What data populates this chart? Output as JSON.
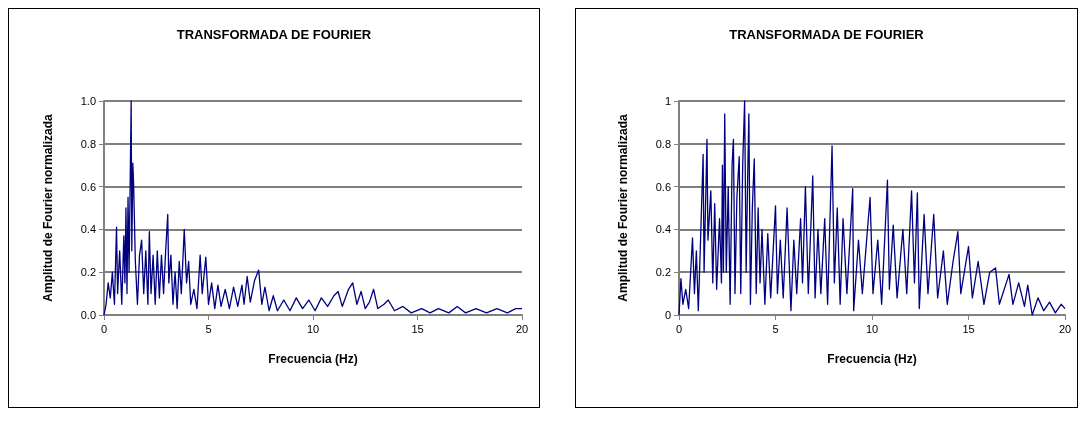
{
  "chart_data": [
    {
      "type": "line",
      "title": "TRANSFORMADA DE FOURIER",
      "xlabel": "Frecuencia (Hz)",
      "ylabel": "Amplitud de Fourier normalizada",
      "grid": "y",
      "marker": "none",
      "line_style": "solid",
      "xlim": [
        0,
        20
      ],
      "xticks": [
        0,
        5,
        10,
        15,
        20
      ],
      "ylim": [
        0,
        1
      ],
      "yticks": [
        {
          "value": 0,
          "label": "0.0"
        },
        {
          "value": 0.2,
          "label": "0.2"
        },
        {
          "value": 0.4,
          "label": "0.4"
        },
        {
          "value": 0.6,
          "label": "0.6"
        },
        {
          "value": 0.8,
          "label": "0.8"
        },
        {
          "value": 1,
          "label": "1.0"
        }
      ],
      "series": [
        {
          "color": "#000080",
          "x": [
            0,
            0.1,
            0.2,
            0.3,
            0.4,
            0.5,
            0.6,
            0.65,
            0.75,
            0.85,
            0.95,
            1.0,
            1.05,
            1.1,
            1.15,
            1.2,
            1.3,
            1.33,
            1.38,
            1.42,
            1.5,
            1.6,
            1.7,
            1.8,
            1.9,
            2.0,
            2.1,
            2.17,
            2.25,
            2.35,
            2.45,
            2.55,
            2.65,
            2.75,
            2.85,
            2.95,
            3.05,
            3.1,
            3.2,
            3.3,
            3.4,
            3.5,
            3.6,
            3.7,
            3.84,
            3.95,
            4.05,
            4.15,
            4.3,
            4.45,
            4.6,
            4.7,
            4.87,
            5.0,
            5.15,
            5.3,
            5.45,
            5.6,
            5.8,
            6.0,
            6.2,
            6.4,
            6.6,
            6.7,
            6.85,
            7.0,
            7.2,
            7.4,
            7.55,
            7.7,
            7.9,
            8.1,
            8.3,
            8.6,
            8.9,
            9.2,
            9.5,
            9.8,
            10.1,
            10.4,
            10.7,
            11.0,
            11.2,
            11.4,
            11.7,
            11.9,
            12.1,
            12.3,
            12.5,
            12.7,
            12.9,
            13.1,
            13.4,
            13.6,
            13.9,
            14.3,
            14.7,
            15.2,
            15.6,
            16.0,
            16.5,
            16.9,
            17.3,
            17.8,
            18.3,
            18.8,
            19.3,
            19.7,
            20
          ],
          "values": [
            0,
            0.05,
            0.15,
            0.08,
            0.2,
            0.05,
            0.41,
            0.1,
            0.3,
            0.05,
            0.37,
            0.15,
            0.5,
            0.1,
            0.55,
            0.2,
            1.0,
            0.3,
            0.71,
            0.6,
            0.25,
            0.05,
            0.28,
            0.35,
            0.1,
            0.3,
            0.05,
            0.39,
            0.1,
            0.28,
            0.05,
            0.3,
            0.08,
            0.28,
            0.1,
            0.3,
            0.47,
            0.15,
            0.28,
            0.05,
            0.2,
            0.03,
            0.25,
            0.1,
            0.4,
            0.15,
            0.25,
            0.05,
            0.12,
            0.03,
            0.28,
            0.1,
            0.27,
            0.05,
            0.15,
            0.03,
            0.14,
            0.04,
            0.12,
            0.03,
            0.13,
            0.04,
            0.14,
            0.05,
            0.18,
            0.06,
            0.16,
            0.21,
            0.05,
            0.13,
            0.02,
            0.09,
            0.02,
            0.07,
            0.02,
            0.08,
            0.03,
            0.07,
            0.02,
            0.08,
            0.04,
            0.09,
            0.11,
            0.04,
            0.12,
            0.15,
            0.05,
            0.11,
            0.03,
            0.06,
            0.12,
            0.03,
            0.05,
            0.07,
            0.02,
            0.04,
            0.01,
            0.03,
            0.01,
            0.03,
            0.01,
            0.04,
            0.01,
            0.03,
            0.01,
            0.03,
            0.01,
            0.03,
            0.03
          ]
        }
      ]
    },
    {
      "type": "line",
      "title": "TRANSFORMADA DE FOURIER",
      "xlabel": "Frecuencia (Hz)",
      "ylabel": "Amplitud de Fourier normalizada",
      "grid": "y",
      "marker": "none",
      "line_style": "solid",
      "xlim": [
        0,
        20
      ],
      "xticks": [
        0,
        5,
        10,
        15,
        20
      ],
      "ylim": [
        0,
        1
      ],
      "yticks": [
        0,
        0.2,
        0.4,
        0.6,
        0.8,
        1
      ],
      "series": [
        {
          "color": "#000080",
          "x": [
            0,
            0.1,
            0.2,
            0.35,
            0.5,
            0.7,
            0.8,
            0.9,
            1.0,
            1.1,
            1.25,
            1.3,
            1.45,
            1.5,
            1.65,
            1.75,
            1.85,
            1.95,
            2.1,
            2.2,
            2.25,
            2.3,
            2.37,
            2.45,
            2.55,
            2.65,
            2.75,
            2.82,
            2.9,
            3.0,
            3.12,
            3.2,
            3.3,
            3.4,
            3.48,
            3.55,
            3.62,
            3.7,
            3.8,
            3.9,
            4.0,
            4.1,
            4.2,
            4.3,
            4.45,
            4.6,
            4.75,
            5.0,
            5.1,
            5.25,
            5.4,
            5.6,
            5.8,
            5.95,
            6.1,
            6.3,
            6.4,
            6.55,
            6.7,
            6.93,
            7.05,
            7.2,
            7.35,
            7.55,
            7.7,
            7.93,
            8.05,
            8.2,
            8.35,
            8.5,
            8.7,
            9.0,
            9.05,
            9.3,
            9.5,
            9.9,
            10.05,
            10.3,
            10.5,
            10.8,
            10.9,
            11.1,
            11.3,
            11.6,
            11.8,
            12.05,
            12.2,
            12.35,
            12.45,
            12.7,
            12.9,
            13.2,
            13.4,
            13.7,
            13.9,
            14.2,
            14.45,
            14.6,
            15.0,
            15.2,
            15.5,
            15.8,
            16.1,
            16.4,
            16.6,
            17.1,
            17.3,
            17.6,
            17.9,
            18.07,
            18.3,
            18.6,
            18.9,
            19.2,
            19.5,
            19.8,
            20
          ],
          "values": [
            0,
            0.17,
            0.05,
            0.12,
            0.03,
            0.36,
            0.1,
            0.3,
            0.02,
            0.3,
            0.75,
            0.2,
            0.82,
            0.35,
            0.58,
            0.15,
            0.52,
            0.12,
            0.45,
            0.15,
            0.7,
            0.2,
            0.94,
            0.2,
            0.6,
            0.05,
            0.7,
            0.82,
            0.1,
            0.55,
            0.74,
            0.1,
            0.7,
            1.0,
            0.2,
            0.6,
            0.94,
            0.05,
            0.5,
            0.73,
            0.1,
            0.5,
            0.15,
            0.4,
            0.05,
            0.38,
            0.08,
            0.51,
            0.1,
            0.35,
            0.08,
            0.5,
            0.02,
            0.35,
            0.1,
            0.45,
            0.15,
            0.6,
            0.1,
            0.65,
            0.08,
            0.4,
            0.1,
            0.45,
            0.05,
            0.79,
            0.15,
            0.5,
            0.05,
            0.45,
            0.1,
            0.59,
            0.02,
            0.35,
            0.1,
            0.55,
            0.1,
            0.35,
            0.05,
            0.63,
            0.12,
            0.42,
            0.08,
            0.4,
            0.1,
            0.58,
            0.15,
            0.57,
            0.03,
            0.47,
            0.1,
            0.47,
            0.08,
            0.3,
            0.05,
            0.25,
            0.39,
            0.1,
            0.32,
            0.08,
            0.25,
            0.05,
            0.2,
            0.22,
            0.05,
            0.19,
            0.05,
            0.15,
            0.04,
            0.14,
            0,
            0.08,
            0.02,
            0.06,
            0.01,
            0.05,
            0.03
          ]
        }
      ]
    }
  ]
}
